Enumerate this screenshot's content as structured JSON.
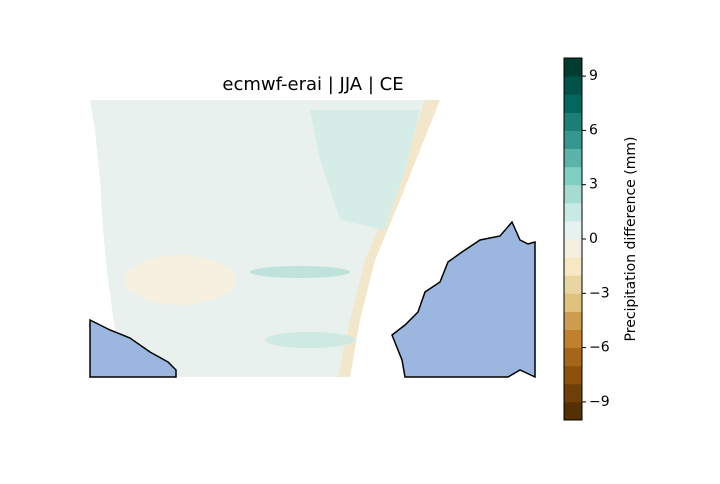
{
  "title": "ecmwf-erai | JJA | CE",
  "colorbar": {
    "label": "Precipitation difference (mm)",
    "lim": [
      -10,
      10
    ],
    "ticks": [
      {
        "value": 9,
        "label": "9"
      },
      {
        "value": 6,
        "label": "6"
      },
      {
        "value": 3,
        "label": "3"
      },
      {
        "value": 0,
        "label": "0"
      },
      {
        "value": -3,
        "label": "−3"
      },
      {
        "value": -6,
        "label": "−6"
      },
      {
        "value": -9,
        "label": "−9"
      }
    ],
    "colors": [
      "#543005",
      "#6f3f08",
      "#8c510a",
      "#a6661a",
      "#bf812d",
      "#cf9d4f",
      "#dfc27d",
      "#e9d5a2",
      "#f6e8c3",
      "#f5efdf",
      "#e6f2f0",
      "#c7eae5",
      "#a5dbd2",
      "#80cdc1",
      "#5ab4a9",
      "#35978f",
      "#1b7f76",
      "#01665e",
      "#01534a",
      "#003c30"
    ]
  }
}
